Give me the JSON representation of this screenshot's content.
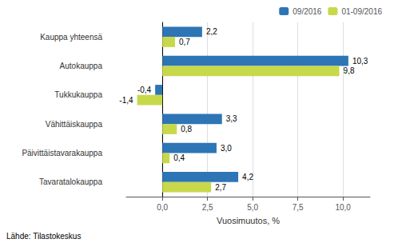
{
  "chart_data": {
    "type": "bar",
    "orientation": "horizontal",
    "categories": [
      "Kauppa yhteensä",
      "Autokauppa",
      "Tukkukauppa",
      "Vähittäiskauppa",
      "Päivittäistavarakauppa",
      "Tavaratalokauppa"
    ],
    "series": [
      {
        "name": "09/2016",
        "color": "#2e75b6",
        "values": [
          2.2,
          10.3,
          -0.4,
          3.3,
          3.0,
          4.2
        ],
        "value_labels": [
          "2,2",
          "10,3",
          "-0,4",
          "3,3",
          "3,0",
          "4,2"
        ]
      },
      {
        "name": "01-09/2016",
        "color": "#c7d84b",
        "values": [
          0.7,
          9.8,
          -1.4,
          0.8,
          0.4,
          2.7
        ],
        "value_labels": [
          "0,7",
          "9,8",
          "-1,4",
          "0,8",
          "0,4",
          "2,7"
        ]
      }
    ],
    "xlabel": "Vuosimuutos, %",
    "xlim": [
      -2.0,
      11.5
    ],
    "xticks": [
      {
        "value": 0.0,
        "label": "0,0"
      },
      {
        "value": 2.5,
        "label": "2,5"
      },
      {
        "value": 5.0,
        "label": "5,0"
      },
      {
        "value": 7.5,
        "label": "7,5"
      },
      {
        "value": 10.0,
        "label": "10,0"
      }
    ],
    "grid": true,
    "legend": "upper right",
    "data_labels": true,
    "annotations": [
      "Lähde: Tilastokeskus"
    ]
  }
}
